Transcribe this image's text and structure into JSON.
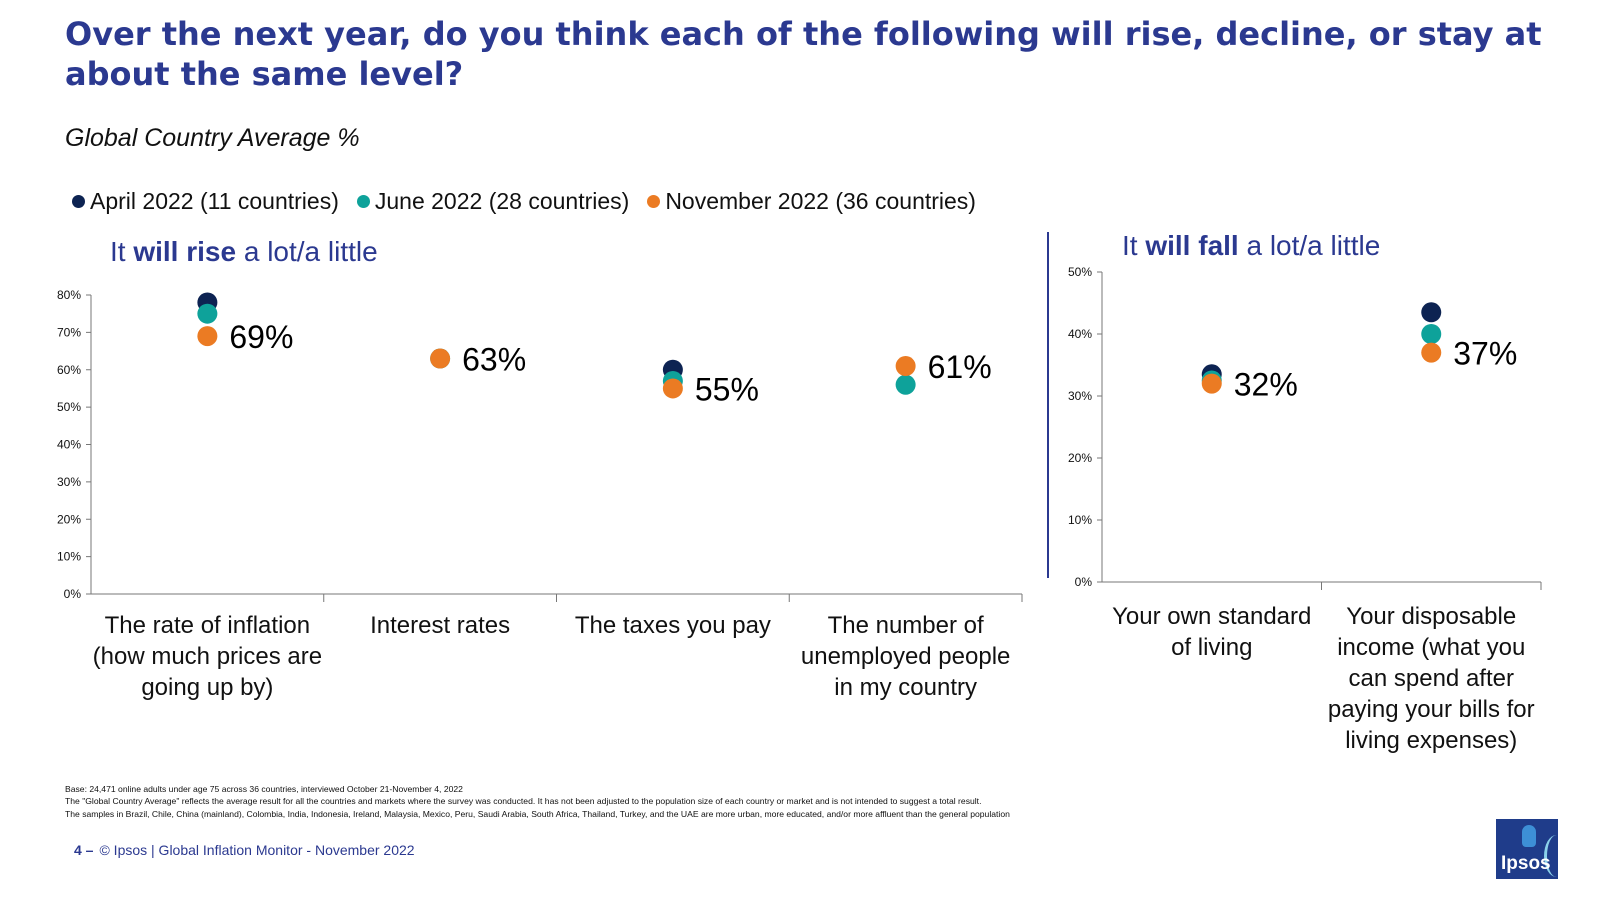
{
  "title": "Over the next year, do you think each of the following will rise, decline, or stay at about the same level?",
  "subtitle": "Global Country Average %",
  "legend": [
    {
      "label": "April 2022 (11 countries)",
      "color": "#0d2352"
    },
    {
      "label": "June 2022 (28 countries)",
      "color": "#0ea29a"
    },
    {
      "label": "November 2022 (36 countries)",
      "color": "#eb7b23"
    }
  ],
  "panels": {
    "rise": {
      "prefix": "It ",
      "bold": "will rise",
      "suffix": " a lot/a little"
    },
    "fall": {
      "prefix": "It ",
      "bold": "will fall",
      "suffix": " a lot/a little"
    }
  },
  "chart_data": [
    {
      "type": "scatter",
      "title": "It will rise a lot/a little",
      "categories": [
        "The rate of inflation (how much prices are going up by)",
        "Interest rates",
        "The taxes you pay",
        "The number of unemployed people in my country"
      ],
      "series": [
        {
          "name": "April 2022 (11 countries)",
          "values": [
            78,
            null,
            60,
            null
          ]
        },
        {
          "name": "June 2022 (28 countries)",
          "values": [
            75,
            63,
            57,
            56
          ]
        },
        {
          "name": "November 2022 (36 countries)",
          "values": [
            69,
            63,
            55,
            61
          ]
        }
      ],
      "data_labels": [
        "69%",
        "63%",
        "55%",
        "61%"
      ],
      "ylim": [
        0,
        80
      ],
      "yticks": [
        "0%",
        "10%",
        "20%",
        "30%",
        "40%",
        "50%",
        "60%",
        "70%",
        "80%"
      ],
      "grid": false
    },
    {
      "type": "scatter",
      "title": "It will fall a lot/a little",
      "categories": [
        "Your own standard of living",
        "Your disposable income (what you can spend after paying your bills for living expenses)"
      ],
      "series": [
        {
          "name": "April 2022 (11 countries)",
          "values": [
            33.5,
            43.5
          ]
        },
        {
          "name": "June 2022 (28 countries)",
          "values": [
            32.5,
            40
          ]
        },
        {
          "name": "November 2022 (36 countries)",
          "values": [
            32,
            37
          ]
        }
      ],
      "data_labels": [
        "32%",
        "37%"
      ],
      "ylim": [
        0,
        50
      ],
      "yticks": [
        "0%",
        "10%",
        "20%",
        "30%",
        "40%",
        "50%"
      ],
      "grid": false
    }
  ],
  "footnotes": [
    "Base: 24,471 online adults under age 75 across 36 countries, interviewed October 21-November 4, 2022",
    "The \"Global Country Average\" reflects the average result for all the countries and markets where the survey was conducted. It has not been adjusted to the population size of each country or market and is not intended to suggest a total result.",
    "The samples in Brazil, Chile, China (mainland), Colombia, India, Indonesia, Ireland, Malaysia, Mexico, Peru, Saudi Arabia, South Africa, Thailand, Turkey, and the UAE are more urban, more educated, and/or more affluent than the general population"
  ],
  "footer": {
    "page": "4 –",
    "text": "© Ipsos | Global Inflation Monitor - November 2022"
  },
  "logo_text": "Ipsos"
}
